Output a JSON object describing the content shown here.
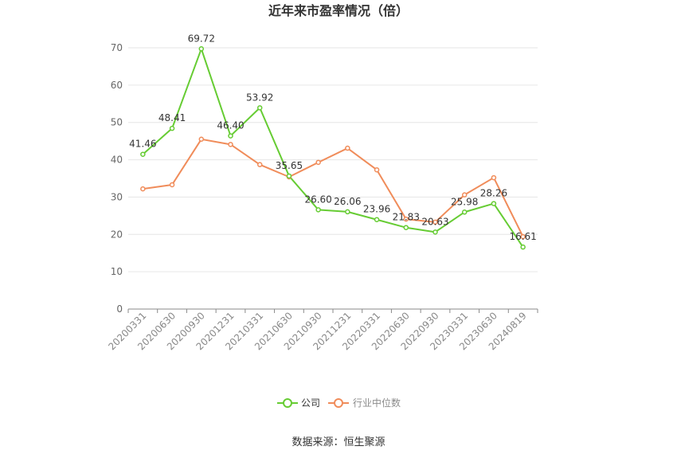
{
  "chart_data": {
    "type": "line",
    "title": "近年来市盈率情况（倍）",
    "categories": [
      "20200331",
      "20200630",
      "20200930",
      "20201231",
      "20210331",
      "20210630",
      "20210930",
      "20211231",
      "20220331",
      "20220630",
      "20220930",
      "20230331",
      "20230630",
      "20240819"
    ],
    "series": [
      {
        "name": "公司",
        "color": "#66cc33",
        "values": [
          41.46,
          48.41,
          69.72,
          46.4,
          53.92,
          35.65,
          26.6,
          26.06,
          23.96,
          21.83,
          20.63,
          25.98,
          28.26,
          16.61
        ],
        "labels": [
          "41.46",
          "48.41",
          "69.72",
          "46.40",
          "53.92",
          "35.65",
          "26.60",
          "26.06",
          "23.96",
          "21.83",
          "20.63",
          "25.98",
          "28.26",
          "16.61"
        ]
      },
      {
        "name": "行业中位数",
        "color": "#f08c5a",
        "values": [
          32.2,
          33.3,
          45.5,
          44.1,
          38.7,
          35.4,
          39.3,
          43.1,
          37.3,
          24.1,
          23.3,
          30.6,
          35.2,
          19.4
        ]
      }
    ],
    "ylim": [
      0,
      70
    ],
    "yticks": [
      0,
      10,
      20,
      30,
      40,
      50,
      60,
      70
    ],
    "grid": true,
    "legend_position": "bottom-center"
  },
  "source_text": "数据来源：恒生聚源"
}
